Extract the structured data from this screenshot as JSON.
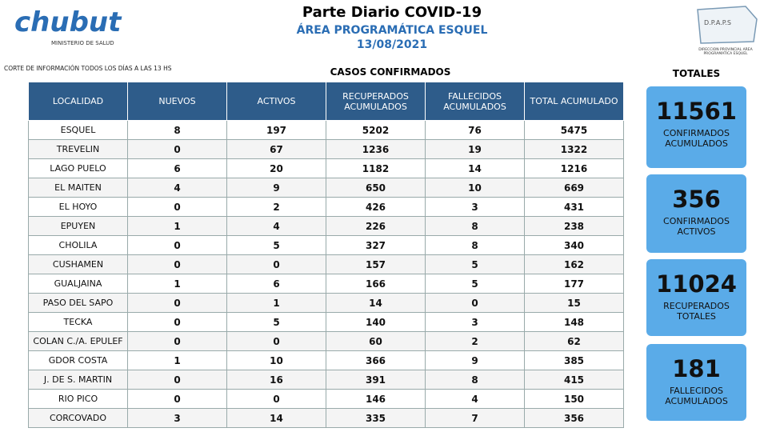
{
  "header": {
    "logo": "chubut",
    "logo_subtitle": "MINISTERIO DE SALUD",
    "title": "Parte Diario COVID-19",
    "subtitle": "ÁREA PROGRAMÁTICA ESQUEL",
    "date": "13/08/2021",
    "right_logo": "D.P.A.P.S",
    "right_logo_caption": "DIRECCION PROVINCIAL AREA PROGRAMATICA ESQUEL"
  },
  "note": "CORTE DE INFORMACIÓN TODOS LOS DÍAS A LAS 13 HS",
  "table": {
    "title": "CASOS CONFIRMADOS",
    "columns": [
      "LOCALIDAD",
      "NUEVOS",
      "ACTIVOS",
      "RECUPERADOS ACUMULADOS",
      "FALLECIDOS ACUMULADOS",
      "TOTAL ACUMULADO"
    ],
    "rows": [
      [
        "ESQUEL",
        8,
        197,
        5202,
        76,
        5475
      ],
      [
        "TREVELIN",
        0,
        67,
        1236,
        19,
        1322
      ],
      [
        "LAGO PUELO",
        6,
        20,
        1182,
        14,
        1216
      ],
      [
        "EL MAITEN",
        4,
        9,
        650,
        10,
        669
      ],
      [
        "EL HOYO",
        0,
        2,
        426,
        3,
        431
      ],
      [
        "EPUYEN",
        1,
        4,
        226,
        8,
        238
      ],
      [
        "CHOLILA",
        0,
        5,
        327,
        8,
        340
      ],
      [
        "CUSHAMEN",
        0,
        0,
        157,
        5,
        162
      ],
      [
        "GUALJAINA",
        1,
        6,
        166,
        5,
        177
      ],
      [
        "PASO DEL SAPO",
        0,
        1,
        14,
        0,
        15
      ],
      [
        "TECKA",
        0,
        5,
        140,
        3,
        148
      ],
      [
        "COLAN C./A. EPULEF",
        0,
        0,
        60,
        2,
        62
      ],
      [
        "GDOR COSTA",
        1,
        10,
        366,
        9,
        385
      ],
      [
        "J. DE S. MARTIN",
        0,
        16,
        391,
        8,
        415
      ],
      [
        "RIO PICO",
        0,
        0,
        146,
        4,
        150
      ],
      [
        "CORCOVADO",
        3,
        14,
        335,
        7,
        356
      ]
    ]
  },
  "totals": {
    "title": "TOTALES",
    "items": [
      {
        "value": 11561,
        "label": "CONFIRMADOS ACUMULADOS"
      },
      {
        "value": 356,
        "label": "CONFIRMADOS ACTIVOS"
      },
      {
        "value": 11024,
        "label": "RECUPERADOS TOTALES"
      },
      {
        "value": 181,
        "label": "FALLECIDOS ACUMULADOS"
      }
    ]
  }
}
